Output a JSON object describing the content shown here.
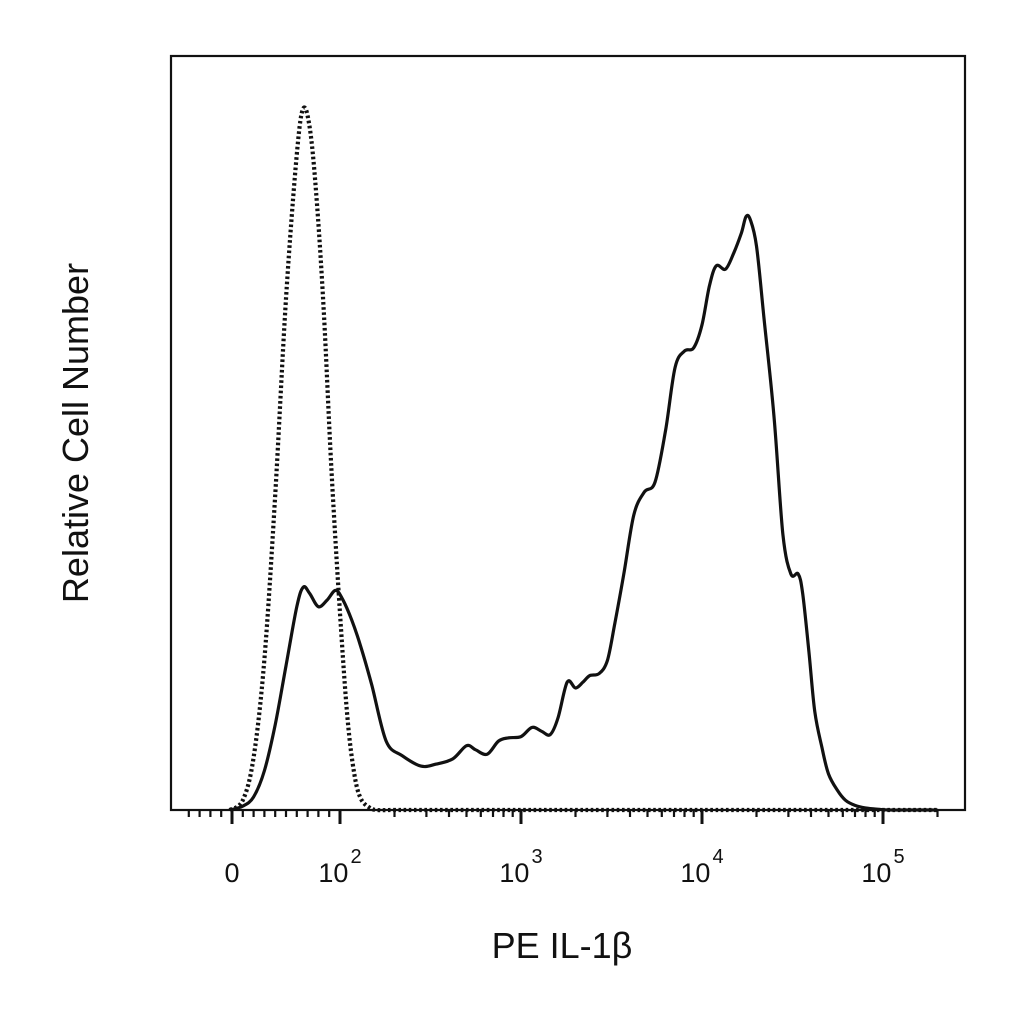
{
  "chart_data": {
    "type": "line",
    "title": "",
    "xlabel": "PE IL-1β",
    "ylabel": "Relative Cell Number",
    "x_scale": "biexponential",
    "x_tick_labels": [
      {
        "value": 0,
        "base": "0",
        "exponent": ""
      },
      {
        "value": 100,
        "base": "10",
        "exponent": "2"
      },
      {
        "value": 1000,
        "base": "10",
        "exponent": "3"
      },
      {
        "value": 10000,
        "base": "10",
        "exponent": "4"
      },
      {
        "value": 100000,
        "base": "10",
        "exponent": "5"
      }
    ],
    "xlim": [
      -40,
      200000
    ],
    "ylim": [
      0,
      1.15
    ],
    "grid": false,
    "legend": "none",
    "series": [
      {
        "style": "solid",
        "color": "#111111",
        "x": [
          -2,
          10,
          20,
          30,
          40,
          50,
          60,
          66,
          72,
          80,
          88,
          96,
          104,
          116,
          130,
          150,
          180,
          220,
          280,
          340,
          420,
          500,
          560,
          650,
          750,
          850,
          1000,
          1150,
          1300,
          1450,
          1600,
          1800,
          2000,
          2200,
          2400,
          2700,
          3000,
          3300,
          3700,
          4200,
          4800,
          5500,
          6300,
          7100,
          8000,
          9000,
          10000,
          11000,
          12000,
          13500,
          15000,
          16500,
          17500,
          18500,
          20000,
          22000,
          25000,
          28000,
          31000,
          34000,
          36000,
          39000,
          42000,
          46000,
          50000,
          56000,
          62000,
          70000,
          80000,
          95000,
          110000,
          140000,
          200000
        ],
        "y": [
          0,
          0.006,
          0.02,
          0.06,
          0.13,
          0.22,
          0.31,
          0.34,
          0.33,
          0.31,
          0.32,
          0.335,
          0.32,
          0.29,
          0.25,
          0.19,
          0.105,
          0.083,
          0.067,
          0.07,
          0.078,
          0.098,
          0.092,
          0.085,
          0.105,
          0.11,
          0.112,
          0.126,
          0.12,
          0.115,
          0.14,
          0.195,
          0.186,
          0.195,
          0.205,
          0.208,
          0.228,
          0.285,
          0.36,
          0.45,
          0.485,
          0.5,
          0.58,
          0.675,
          0.7,
          0.705,
          0.74,
          0.8,
          0.83,
          0.825,
          0.85,
          0.88,
          0.905,
          0.9,
          0.86,
          0.75,
          0.6,
          0.42,
          0.36,
          0.36,
          0.33,
          0.24,
          0.15,
          0.095,
          0.055,
          0.03,
          0.015,
          0.007,
          0.003,
          0.001,
          0,
          0,
          0
        ]
      },
      {
        "style": "dotted",
        "color": "#111111",
        "x": [
          -2,
          10,
          20,
          30,
          40,
          50,
          60,
          66,
          72,
          78,
          85,
          92,
          100,
          110,
          120,
          130,
          145,
          160,
          200,
          300,
          1000,
          10000,
          200000
        ],
        "y": [
          0,
          0.015,
          0.08,
          0.23,
          0.48,
          0.78,
          1.0,
          1.07,
          1.04,
          0.94,
          0.76,
          0.52,
          0.3,
          0.14,
          0.055,
          0.018,
          0.004,
          0,
          0,
          0,
          0,
          0,
          0
        ]
      }
    ]
  }
}
